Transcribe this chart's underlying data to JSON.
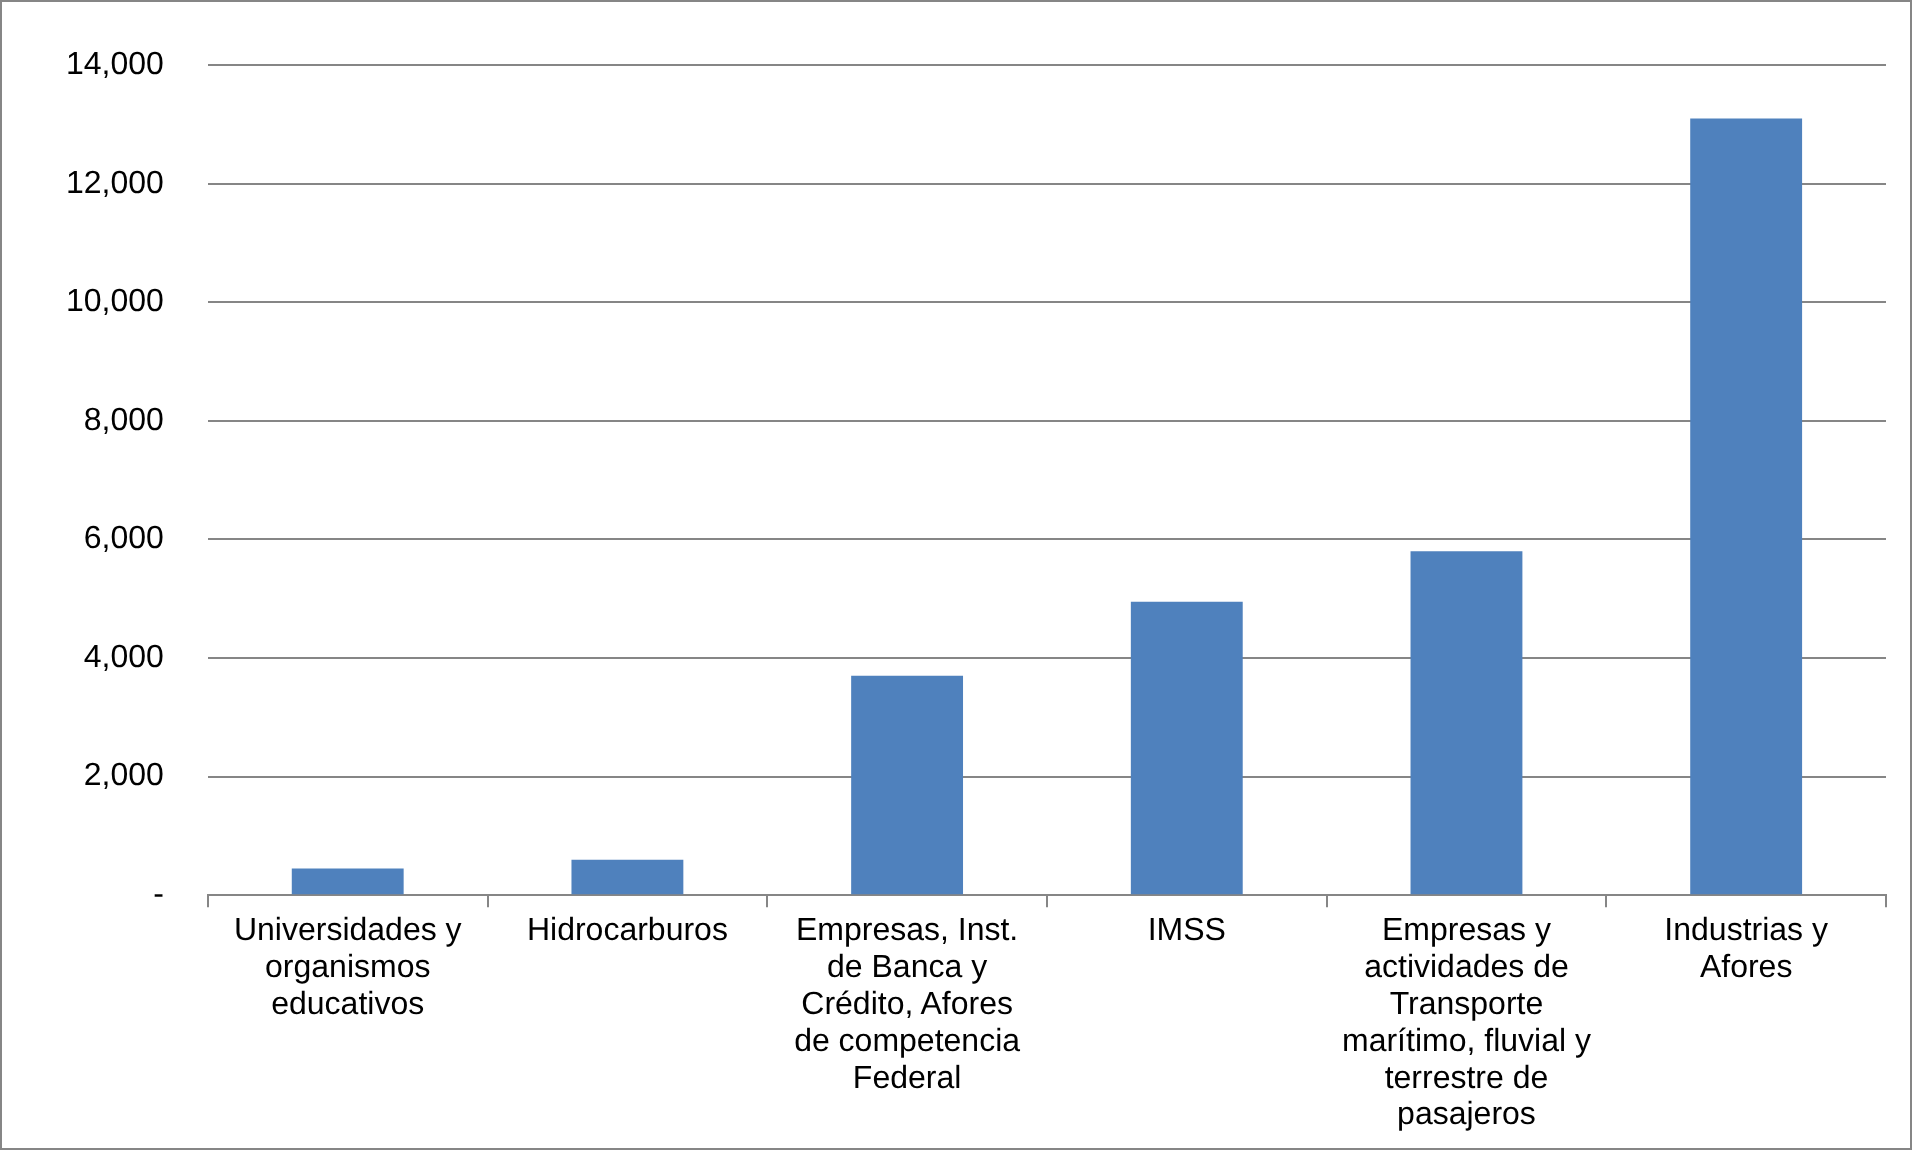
{
  "chart_data": {
    "type": "bar",
    "categories": [
      "Universidades y organismos educativos",
      "Hidrocarburos",
      "Empresas, Inst. de Banca y Crédito, Afores de competencia Federal",
      "IMSS",
      "Empresas y actividades de Transporte marítimo, fluvial y terrestre de pasajeros",
      "Industrias y Afores"
    ],
    "values": [
      450,
      600,
      3700,
      4950,
      5800,
      13100
    ],
    "color": "#4f81bd",
    "ylim": [
      0,
      14000
    ],
    "yticks": [
      {
        "value": 0,
        "label": "-"
      },
      {
        "value": 2000,
        "label": "2,000"
      },
      {
        "value": 4000,
        "label": "4,000"
      },
      {
        "value": 6000,
        "label": "6,000"
      },
      {
        "value": 8000,
        "label": "8,000"
      },
      {
        "value": 10000,
        "label": "10,000"
      },
      {
        "value": 12000,
        "label": "12,000"
      },
      {
        "value": 14000,
        "label": "14,000"
      }
    ],
    "grid": "y"
  }
}
